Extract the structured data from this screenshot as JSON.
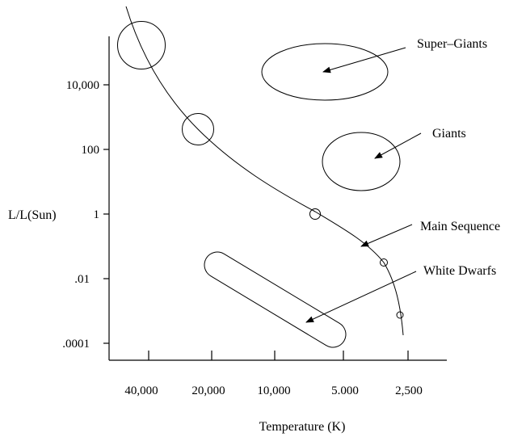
{
  "y_axis": {
    "title": "L/L(Sun)",
    "ticks": [
      "10,000",
      "100",
      "1",
      ".01",
      ".0001"
    ]
  },
  "x_axis": {
    "title": "Temperature (K)",
    "ticks": [
      "40,000",
      "20,000",
      "10,000",
      "5.000",
      "2,500"
    ]
  },
  "regions": {
    "super_giants": "Super–Giants",
    "giants": "Giants",
    "main_sequence": "Main Sequence",
    "white_dwarfs": "White Dwarfs"
  }
}
